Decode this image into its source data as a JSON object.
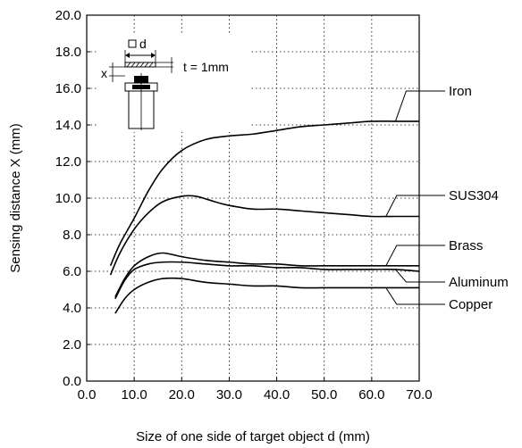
{
  "chart_data": {
    "type": "line",
    "xlabel": "Size of one side of target object d  (mm)",
    "ylabel": "Sensing distance X  (mm)",
    "xlim": [
      0,
      70
    ],
    "ylim": [
      0,
      20
    ],
    "x_ticks": [
      "0.0",
      "10.0",
      "20.0",
      "30.0",
      "40.0",
      "50.0",
      "60.0",
      "70.0"
    ],
    "y_ticks": [
      "0.0",
      "2.0",
      "4.0",
      "6.0",
      "8.0",
      "10.0",
      "12.0",
      "14.0",
      "16.0",
      "18.0",
      "20.0"
    ],
    "grid": "dotted",
    "legend_placement": "right, with leader lines",
    "series": [
      {
        "name": "Iron",
        "x": [
          5,
          7,
          10,
          13,
          16,
          20,
          25,
          30,
          35,
          40,
          45,
          50,
          55,
          60,
          65,
          70
        ],
        "y": [
          6.3,
          7.5,
          8.9,
          10.4,
          11.6,
          12.6,
          13.2,
          13.4,
          13.5,
          13.7,
          13.9,
          14.0,
          14.1,
          14.2,
          14.2,
          14.2
        ]
      },
      {
        "name": "SUS304",
        "x": [
          5,
          7,
          10,
          13,
          16,
          20,
          23,
          27,
          30,
          35,
          40,
          45,
          50,
          55,
          60,
          65,
          70
        ],
        "y": [
          5.8,
          7.0,
          8.3,
          9.2,
          9.8,
          10.1,
          10.1,
          9.8,
          9.6,
          9.4,
          9.4,
          9.3,
          9.2,
          9.1,
          9.0,
          9.0,
          9.0
        ]
      },
      {
        "name": "Brass",
        "x": [
          6,
          8,
          10,
          13,
          16,
          20,
          25,
          30,
          35,
          40,
          45,
          50,
          55,
          60,
          65,
          70
        ],
        "y": [
          4.6,
          5.6,
          6.3,
          6.8,
          7.0,
          6.8,
          6.6,
          6.5,
          6.4,
          6.4,
          6.3,
          6.3,
          6.3,
          6.3,
          6.3,
          6.3
        ]
      },
      {
        "name": "Aluminum",
        "x": [
          6,
          8,
          10,
          13,
          16,
          20,
          25,
          30,
          35,
          40,
          45,
          50,
          55,
          60,
          65,
          70
        ],
        "y": [
          4.5,
          5.5,
          6.1,
          6.4,
          6.5,
          6.5,
          6.4,
          6.3,
          6.3,
          6.2,
          6.2,
          6.1,
          6.1,
          6.1,
          6.1,
          6.0
        ]
      },
      {
        "name": "Copper",
        "x": [
          6,
          8,
          10,
          13,
          16,
          20,
          25,
          30,
          35,
          40,
          45,
          50,
          55,
          60,
          65,
          70
        ],
        "y": [
          3.7,
          4.5,
          5.0,
          5.4,
          5.6,
          5.6,
          5.4,
          5.3,
          5.2,
          5.2,
          5.1,
          5.1,
          5.1,
          5.1,
          5.1,
          5.1
        ]
      }
    ],
    "inset": {
      "d_label": "d",
      "x_label": "x",
      "thickness_label": "t = 1mm"
    }
  }
}
